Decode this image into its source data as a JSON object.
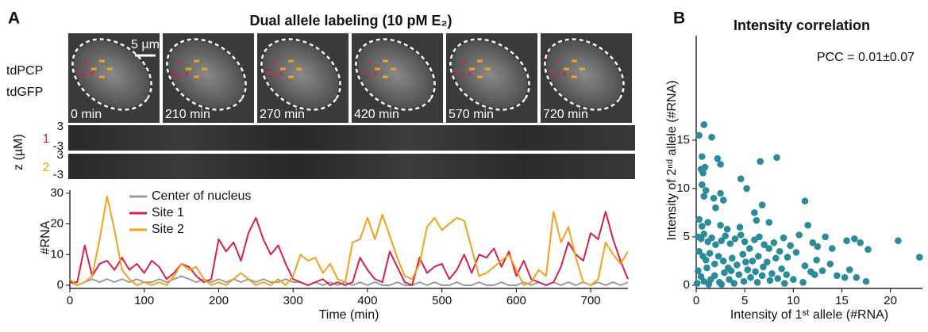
{
  "panels": {
    "a": {
      "label": "A",
      "title": "Dual allele labeling (10 pM E₂)",
      "channels": [
        "tdPCP",
        "tdGFP"
      ],
      "scale_bar": "5 µm",
      "frames": [
        "0 min",
        "210 min",
        "270 min",
        "420 min",
        "570 min",
        "720 min"
      ],
      "kymograph": {
        "axis_label": "z (µM)",
        "tracks": [
          {
            "name": "1",
            "color": "#d6204a",
            "ticks": [
              "3",
              "-3"
            ]
          },
          {
            "name": "2",
            "color": "#f0a21c",
            "ticks": [
              "3",
              "-3"
            ]
          }
        ]
      }
    },
    "b": {
      "label": "B"
    }
  },
  "chart_data": [
    {
      "type": "line",
      "xlabel": "Time (min)",
      "ylabel": "#RNA",
      "legend": "upper-left",
      "x": [
        0,
        10,
        20,
        30,
        40,
        50,
        60,
        70,
        80,
        90,
        100,
        110,
        120,
        130,
        140,
        150,
        160,
        170,
        180,
        190,
        200,
        210,
        220,
        230,
        240,
        250,
        260,
        270,
        280,
        290,
        300,
        310,
        320,
        330,
        340,
        350,
        360,
        370,
        380,
        390,
        400,
        410,
        420,
        430,
        440,
        450,
        460,
        470,
        480,
        490,
        500,
        510,
        520,
        530,
        540,
        550,
        560,
        570,
        580,
        590,
        600,
        610,
        620,
        630,
        640,
        650,
        660,
        670,
        680,
        690,
        700,
        710,
        720,
        730,
        740,
        750
      ],
      "xlim": [
        0,
        750
      ],
      "xticks": [
        0,
        100,
        200,
        300,
        400,
        500,
        600,
        700
      ],
      "ylim": [
        0,
        31
      ],
      "yticks": [
        0,
        10,
        20,
        30
      ],
      "series": [
        {
          "name": "Center of nucleus",
          "color": "#9a9a9a",
          "values": [
            1,
            0,
            1,
            2,
            1,
            2,
            1,
            2,
            1,
            2,
            1,
            1,
            2,
            1,
            2,
            3,
            2,
            1,
            2,
            1,
            2,
            1,
            2,
            1,
            2,
            1,
            2,
            1,
            1,
            2,
            1,
            1,
            0,
            1,
            0,
            1,
            0,
            1,
            0,
            1,
            0,
            1,
            0,
            0,
            1,
            0,
            0,
            1,
            0,
            1,
            0,
            0,
            1,
            0,
            0,
            1,
            0,
            0,
            1,
            0,
            0,
            1,
            0,
            1,
            0,
            1,
            0,
            1,
            0,
            1,
            0,
            1,
            0,
            1,
            0,
            1
          ]
        },
        {
          "name": "Site 1",
          "color": "#d6204a",
          "values": [
            1,
            1,
            13,
            3,
            7,
            8,
            5,
            9,
            5,
            7,
            4,
            8,
            6,
            2,
            4,
            7,
            6,
            3,
            1,
            2,
            15,
            11,
            14,
            8,
            17,
            22,
            15,
            10,
            13,
            7,
            2,
            1,
            0,
            1,
            2,
            0,
            1,
            0,
            1,
            9,
            5,
            2,
            1,
            11,
            6,
            1,
            0,
            9,
            4,
            6,
            7,
            2,
            5,
            10,
            4,
            10,
            9,
            12,
            6,
            11,
            3,
            8,
            2,
            1,
            0,
            1,
            6,
            14,
            10,
            8,
            17,
            15,
            24,
            15,
            8,
            2
          ]
        },
        {
          "name": "Site 2",
          "color": "#f0a21c",
          "values": [
            2,
            0,
            1,
            3,
            15,
            29,
            18,
            5,
            2,
            0,
            1,
            0,
            1,
            0,
            3,
            7,
            5,
            6,
            2,
            0,
            1,
            0,
            2,
            4,
            2,
            0,
            1,
            0,
            2,
            0,
            3,
            10,
            8,
            9,
            4,
            7,
            2,
            1,
            14,
            15,
            22,
            15,
            23,
            16,
            9,
            3,
            2,
            7,
            19,
            22,
            18,
            20,
            22,
            21,
            12,
            3,
            4,
            6,
            8,
            10,
            5,
            0,
            1,
            5,
            3,
            24,
            14,
            19,
            9,
            1,
            0,
            2,
            14,
            10,
            7,
            11
          ]
        }
      ]
    },
    {
      "type": "scatter",
      "title": "Intensity correlation",
      "annotation": "PCC = 0.01±0.07",
      "xlabel": "Intensity of 1ˢᵗ allele (#RNA)",
      "ylabel": "Intensity of 2ⁿᵈ allele (#RNA)",
      "color": "#2a8c99",
      "x": [
        0.3,
        0.8,
        1.6,
        0.5,
        0.9,
        0.7,
        0.6,
        2.2,
        2.5,
        0.6,
        1.0,
        0.8,
        1.8,
        2.5,
        2.8,
        2.0,
        4.6,
        5.2,
        6.6,
        8.3,
        6.8,
        6.0,
        6.2,
        7.5,
        11.2,
        11.5,
        0.3,
        0.6,
        1.2,
        2.5,
        3.2,
        4.5,
        0.2,
        0.5,
        0.8,
        1.2,
        1.6,
        2.0,
        2.6,
        3.0,
        3.5,
        4.0,
        4.6,
        5.0,
        5.5,
        6.0,
        6.5,
        7.0,
        7.5,
        8.0,
        8.6,
        9.0,
        9.7,
        10.6,
        12.0,
        12.5,
        13.3,
        14.0,
        15.5,
        16.3,
        16.9,
        17.7,
        20.8,
        23.0,
        0.3,
        0.7,
        1.0,
        1.4,
        1.9,
        2.3,
        2.8,
        3.3,
        3.7,
        4.2,
        4.8,
        5.3,
        5.8,
        6.4,
        6.9,
        7.3,
        7.8,
        8.2,
        8.8,
        9.4,
        10.3,
        11.2,
        11.8,
        12.4,
        13.0,
        13.8,
        14.5,
        15.3,
        15.8,
        16.5,
        17.5,
        0.2,
        0.5,
        0.8,
        1.1,
        1.5,
        1.9,
        2.4,
        2.9,
        3.4,
        3.9,
        4.4,
        4.9,
        5.6,
        6.3,
        6.8,
        7.6,
        8.4,
        9.1,
        9.3,
        10.0,
        11.0,
        12.2,
        0.1,
        1.3,
        2.6,
        3.6,
        5.1,
        6.1
      ],
      "y": [
        15.5,
        16.6,
        15.3,
        12,
        12.2,
        11.6,
        13.3,
        13.1,
        12.5,
        10.4,
        9.8,
        9.2,
        9.0,
        9.5,
        8.8,
        8.0,
        11,
        10,
        12.8,
        13.2,
        8.3,
        7.5,
        6.7,
        6.5,
        8.7,
        6.2,
        6.8,
        6.1,
        6.5,
        6.2,
        5.8,
        6.0,
        5.0,
        4.8,
        5.3,
        4.5,
        4.9,
        4.2,
        4.6,
        5.1,
        4.3,
        4.8,
        5.2,
        4.5,
        3.8,
        4.7,
        5.0,
        4.2,
        3.8,
        4.4,
        3.5,
        4.9,
        4.1,
        5.2,
        4.4,
        4.0,
        5.0,
        3.8,
        4.6,
        4.8,
        4.4,
        3.7,
        4.6,
        2.9,
        3.5,
        3.0,
        2.6,
        3.3,
        2.2,
        3.0,
        2.5,
        1.8,
        2.8,
        2.1,
        3.2,
        1.6,
        2.5,
        3.0,
        1.9,
        2.4,
        1.2,
        2.8,
        1.7,
        2.9,
        3.4,
        2.0,
        1.4,
        2.6,
        1.5,
        2.2,
        1.0,
        0.8,
        1.6,
        0.8,
        0.4,
        1.5,
        0.9,
        0.4,
        1.8,
        0.6,
        1.0,
        0.3,
        1.3,
        0.6,
        0.2,
        1.1,
        0.4,
        0.8,
        0.3,
        1.0,
        0.5,
        0.7,
        0.2,
        1.1,
        0.6,
        0.3,
        1.1,
        0.2,
        0.1,
        0.1,
        1.5,
        2.4,
        1.4
      ],
      "xlim": [
        0,
        23.3
      ],
      "xticks": [
        0,
        5,
        10,
        15,
        20
      ],
      "ylim": [
        0,
        25.8
      ],
      "yticks": [
        0,
        5,
        10,
        15
      ]
    }
  ]
}
